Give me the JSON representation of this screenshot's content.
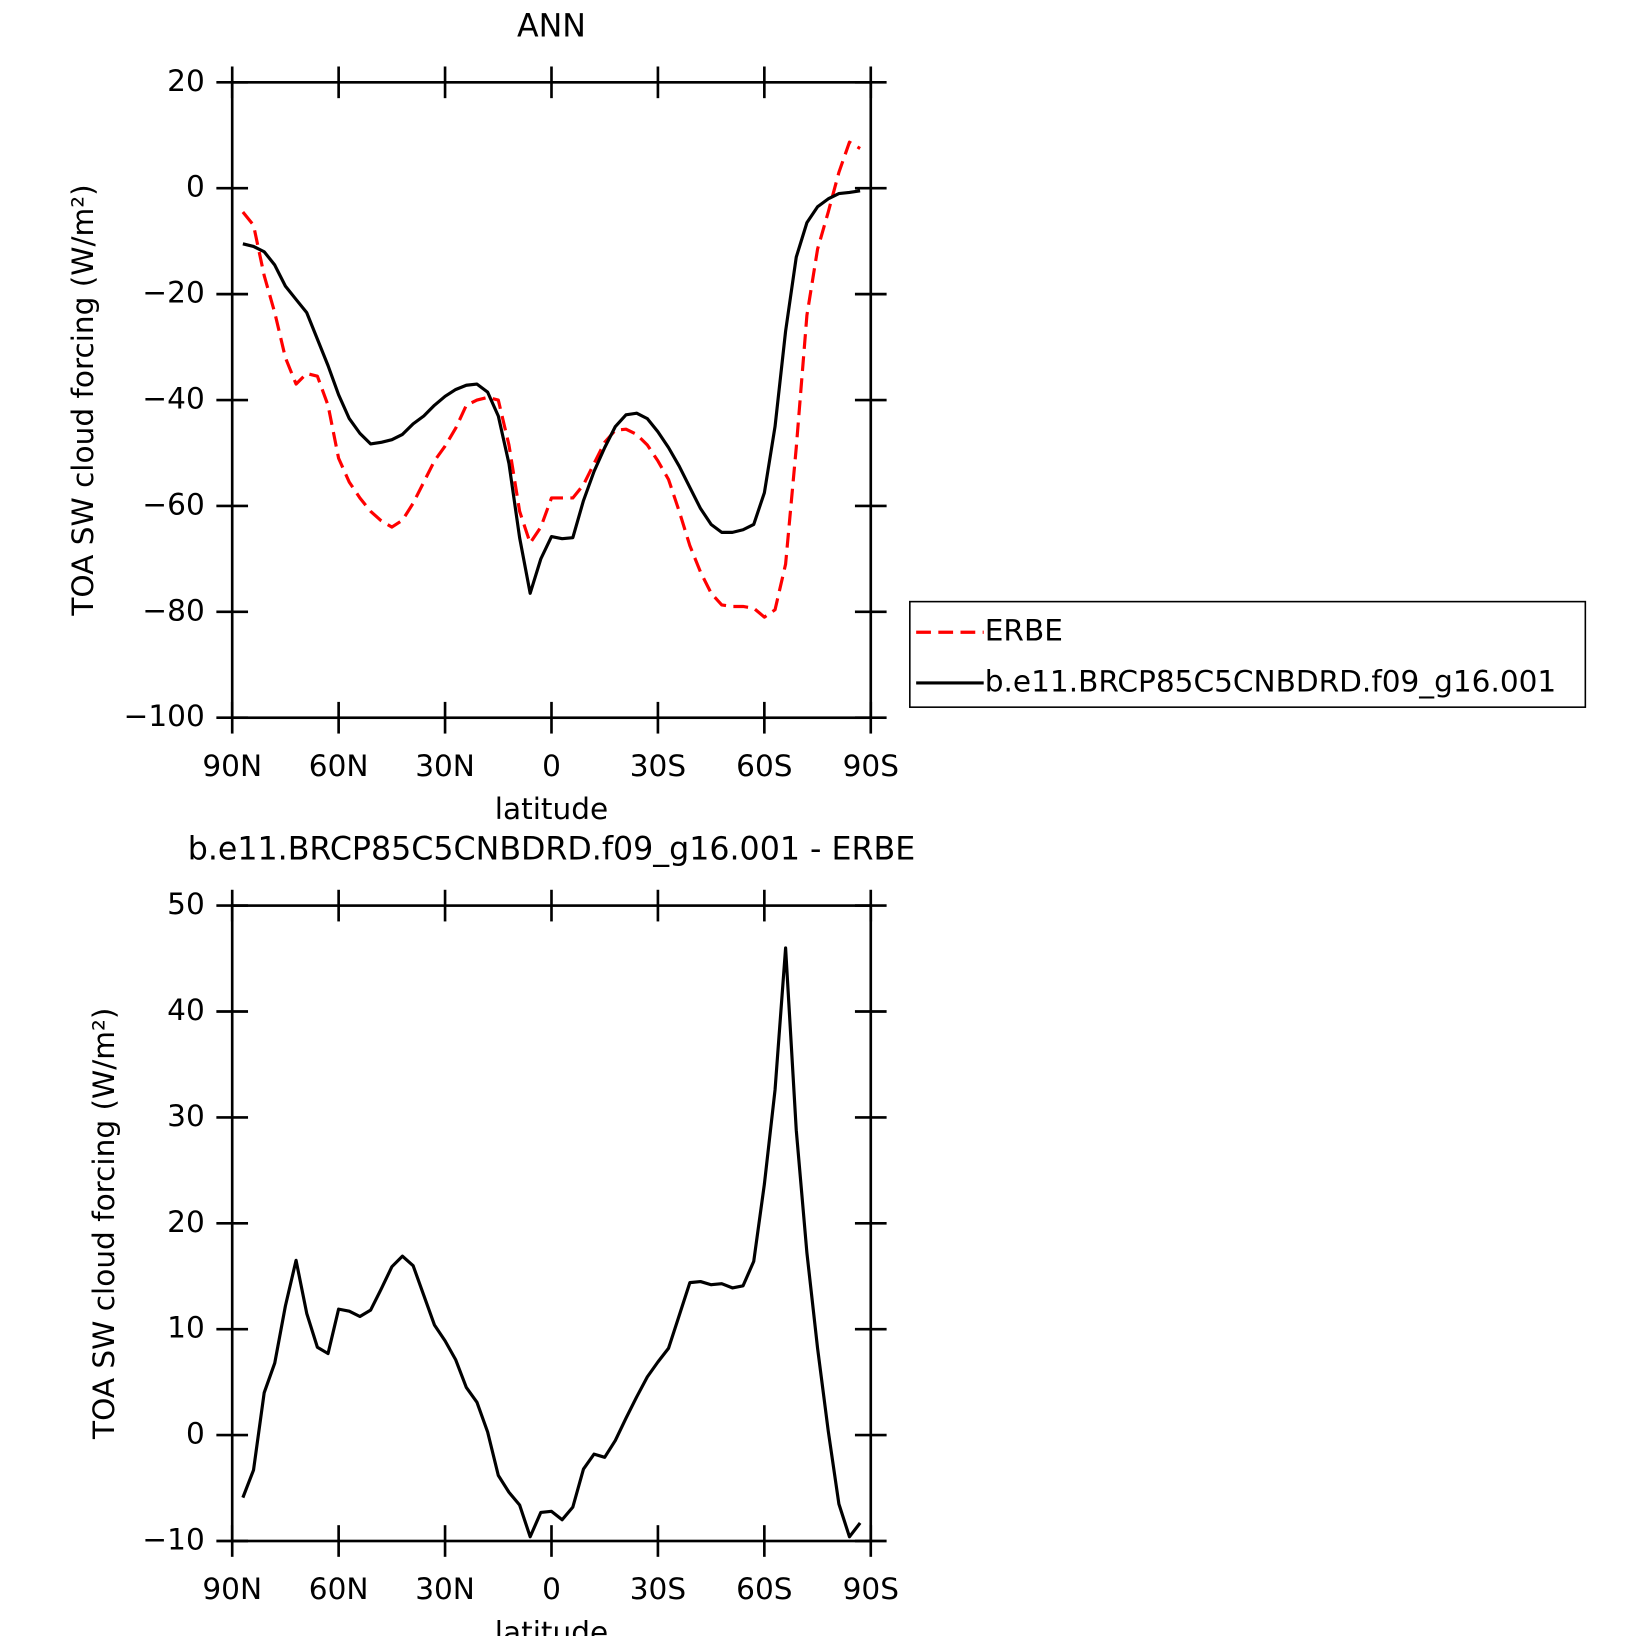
{
  "chart_data": [
    {
      "type": "line",
      "title": "ANN",
      "xlabel": "latitude",
      "ylabel": "TOA SW cloud forcing (W/m²)",
      "x": [
        87,
        84,
        81,
        78,
        75,
        72,
        69,
        66,
        63,
        60,
        57,
        54,
        51,
        48,
        45,
        42,
        39,
        36,
        33,
        30,
        27,
        24,
        21,
        18,
        15,
        12,
        9,
        6,
        3,
        0,
        -3,
        -6,
        -9,
        -12,
        -15,
        -18,
        -21,
        -24,
        -27,
        -30,
        -33,
        -36,
        -39,
        -42,
        -45,
        -48,
        -51,
        -54,
        -57,
        -60,
        -63,
        -66,
        -69,
        -72,
        -75,
        -78,
        -81,
        -84,
        -87
      ],
      "series": [
        {
          "name": "ERBE",
          "color": "#ff0000",
          "line_style": "dashed",
          "values": [
            -4.5,
            -7,
            -16.5,
            -23.5,
            -32,
            -37,
            -35,
            -35.5,
            -41,
            -51,
            -55.5,
            -58.5,
            -61,
            -62.8,
            -64,
            -62.7,
            -59.5,
            -55.5,
            -51.5,
            -48.7,
            -45.3,
            -41,
            -40,
            -39.5,
            -40,
            -48.5,
            -61,
            -67,
            -64,
            -58.5,
            -58.5,
            -58.5,
            -56,
            -52,
            -48,
            -45.7,
            -45.5,
            -46.5,
            -48.5,
            -51.5,
            -55,
            -61,
            -67.5,
            -72.5,
            -76.5,
            -78.7,
            -79,
            -79,
            -79.3,
            -81,
            -79.6,
            -71,
            -49,
            -24,
            -11.5,
            -4.5,
            3,
            8.7,
            7.5
          ]
        },
        {
          "name": "b.e11.BRCP85C5CNBDRD.f09_g16.001",
          "color": "#000000",
          "line_style": "solid",
          "values": [
            -10.5,
            -11,
            -12,
            -14.5,
            -18.5,
            -21,
            -23.5,
            -28.5,
            -33.5,
            -39,
            -43.5,
            -46.3,
            -48.3,
            -48,
            -47.5,
            -46.5,
            -44.5,
            -43,
            -41,
            -39.3,
            -38,
            -37.2,
            -37,
            -38.5,
            -43,
            -52,
            -66,
            -76.5,
            -70,
            -65.8,
            -66.2,
            -66,
            -59,
            -53.5,
            -49,
            -45,
            -42.8,
            -42.5,
            -43.5,
            -46,
            -49,
            -52.5,
            -56.5,
            -60.5,
            -63.5,
            -65,
            -65,
            -64.5,
            -63.5,
            -57.5,
            -45,
            -27,
            -13,
            -6.5,
            -3.5,
            -2,
            -1,
            -0.8,
            -0.5
          ]
        }
      ],
      "xlim": [
        90,
        -90
      ],
      "xticks": [
        {
          "value": 90,
          "label": "90N"
        },
        {
          "value": 60,
          "label": "60N"
        },
        {
          "value": 30,
          "label": "30N"
        },
        0,
        {
          "value": -30,
          "label": "30S"
        },
        {
          "value": -60,
          "label": "60S"
        },
        {
          "value": -90,
          "label": "90S"
        }
      ],
      "ylim": [
        -100,
        20
      ],
      "yticks": [
        {
          "value": -100,
          "label": "−100"
        },
        {
          "value": -80,
          "label": "−80"
        },
        {
          "value": -60,
          "label": "−60"
        },
        {
          "value": -40,
          "label": "−40"
        },
        {
          "value": -20,
          "label": "−20"
        },
        0,
        20
      ],
      "legend": "right"
    },
    {
      "type": "line",
      "title": "b.e11.BRCP85C5CNBDRD.f09_g16.001 - ERBE",
      "xlabel": "latitude",
      "ylabel": "TOA SW cloud forcing (W/m²)",
      "x": [
        87,
        84,
        81,
        78,
        75,
        72,
        69,
        66,
        63,
        60,
        57,
        54,
        51,
        48,
        45,
        42,
        39,
        36,
        33,
        30,
        27,
        24,
        21,
        18,
        15,
        12,
        9,
        6,
        3,
        0,
        -3,
        -6,
        -9,
        -12,
        -15,
        -18,
        -21,
        -24,
        -27,
        -30,
        -33,
        -36,
        -39,
        -42,
        -45,
        -48,
        -51,
        -54,
        -57,
        -60,
        -63,
        -66,
        -69,
        -72,
        -75,
        -78,
        -81,
        -84,
        -87
      ],
      "series": [
        {
          "color": "#000000",
          "line_style": "solid",
          "values": [
            -5.9,
            -3.3,
            4,
            6.8,
            12.2,
            16.5,
            11.5,
            8.3,
            7.7,
            11.9,
            11.7,
            11.2,
            11.8,
            13.8,
            15.9,
            16.9,
            16,
            13.2,
            10.4,
            8.9,
            7.1,
            4.5,
            3.1,
            0.3,
            -3.8,
            -5.4,
            -6.6,
            -9.6,
            -7.3,
            -7.2,
            -8,
            -6.8,
            -3.2,
            -1.8,
            -2.1,
            -0.5,
            1.6,
            3.6,
            5.5,
            6.9,
            8.2,
            11.3,
            14.4,
            14.5,
            14.2,
            14.3,
            13.9,
            14.1,
            16.4,
            23.7,
            32.6,
            46,
            28.8,
            17.2,
            8.2,
            0.4,
            -6.5,
            -9.6,
            -8.3
          ]
        }
      ],
      "xlim": [
        90,
        -90
      ],
      "xticks": [
        {
          "value": 90,
          "label": "90N"
        },
        {
          "value": 60,
          "label": "60N"
        },
        {
          "value": 30,
          "label": "30N"
        },
        0,
        {
          "value": -30,
          "label": "30S"
        },
        {
          "value": -60,
          "label": "60S"
        },
        {
          "value": -90,
          "label": "90S"
        }
      ],
      "ylim": [
        -10,
        50
      ],
      "yticks": [
        {
          "value": -10,
          "label": "−10"
        },
        0,
        10,
        20,
        30,
        40,
        50
      ]
    }
  ]
}
